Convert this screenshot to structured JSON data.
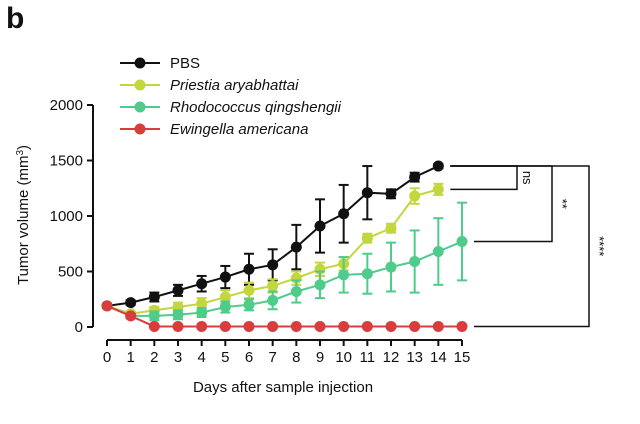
{
  "panel_label": "b",
  "chart_data": {
    "type": "line",
    "title": "",
    "xlabel": "Days after sample injection",
    "ylabel": "Tumor volume (mm³)",
    "ylabel_base": "Tumor volume (mm",
    "ylabel_sup": "3",
    "ylabel_end": ")",
    "xlim": [
      0,
      15
    ],
    "ylim": [
      0,
      2000
    ],
    "x_ticks": [
      0,
      1,
      2,
      3,
      4,
      5,
      6,
      7,
      8,
      9,
      10,
      11,
      12,
      13,
      14,
      15
    ],
    "y_ticks": [
      0,
      500,
      1000,
      1500,
      2000
    ],
    "legend_position": "top-left",
    "series": [
      {
        "name": "PBS",
        "italic": false,
        "color": "#111111",
        "x": [
          0,
          1,
          2,
          3,
          4,
          5,
          6,
          7,
          8,
          9,
          10,
          11,
          12,
          13,
          14
        ],
        "values": [
          190,
          220,
          270,
          330,
          390,
          450,
          520,
          560,
          720,
          910,
          1020,
          1210,
          1200,
          1350,
          1450
        ],
        "errors": [
          20,
          20,
          40,
          50,
          70,
          100,
          140,
          140,
          200,
          240,
          260,
          240,
          40,
          40,
          20
        ]
      },
      {
        "name": "Priestia aryabhattai",
        "italic": true,
        "color": "#c3d63c",
        "x": [
          0,
          1,
          2,
          3,
          4,
          5,
          6,
          7,
          8,
          9,
          10,
          11,
          12,
          13,
          14
        ],
        "values": [
          190,
          120,
          150,
          180,
          210,
          270,
          330,
          370,
          440,
          520,
          570,
          800,
          890,
          1180,
          1240
        ],
        "errors": [
          15,
          20,
          30,
          40,
          50,
          60,
          70,
          60,
          60,
          60,
          60,
          40,
          40,
          70,
          50
        ]
      },
      {
        "name": "Rhodococcus qingshengii",
        "italic": true,
        "color": "#4fcb8b",
        "x": [
          0,
          1,
          2,
          3,
          4,
          5,
          6,
          7,
          8,
          9,
          10,
          11,
          12,
          13,
          14,
          15
        ],
        "values": [
          190,
          100,
          100,
          110,
          130,
          180,
          200,
          240,
          320,
          380,
          470,
          480,
          540,
          590,
          680,
          770
        ],
        "errors": [
          15,
          20,
          40,
          40,
          40,
          50,
          50,
          80,
          100,
          120,
          160,
          180,
          220,
          280,
          300,
          350
        ]
      },
      {
        "name": "Ewingella americana",
        "italic": true,
        "color": "#d93c3c",
        "x": [
          0,
          1,
          2,
          3,
          4,
          5,
          6,
          7,
          8,
          9,
          10,
          11,
          12,
          13,
          14,
          15
        ],
        "values": [
          190,
          100,
          5,
          5,
          5,
          5,
          5,
          5,
          5,
          5,
          5,
          5,
          5,
          5,
          5,
          5
        ],
        "errors": [
          15,
          15,
          0,
          0,
          0,
          0,
          0,
          0,
          0,
          0,
          0,
          0,
          0,
          0,
          0,
          0
        ]
      }
    ],
    "annotations": [
      {
        "label": "ns",
        "from_series": 0,
        "to_series": 1,
        "level": 1
      },
      {
        "label": "**",
        "from_series": 0,
        "to_series": 2,
        "level": 2
      },
      {
        "label": "****",
        "from_series": 0,
        "to_series": 3,
        "level": 3
      }
    ]
  }
}
